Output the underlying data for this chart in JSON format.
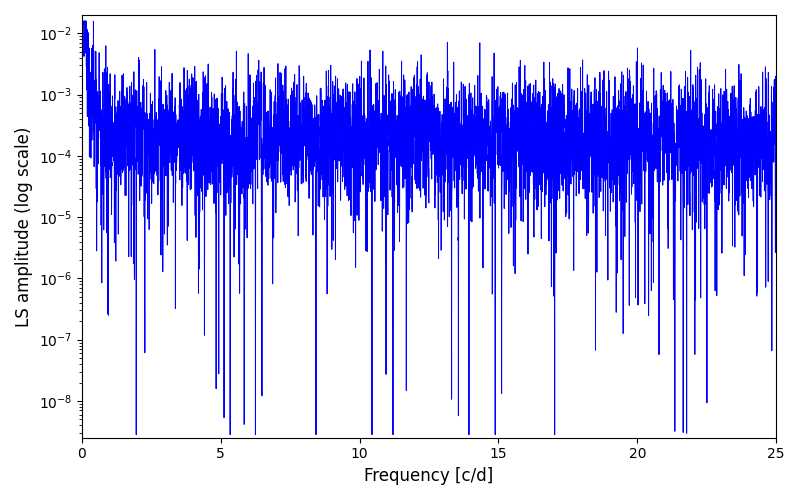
{
  "xlabel": "Frequency [c/d]",
  "ylabel": "LS amplitude (log scale)",
  "xlim": [
    0,
    25
  ],
  "ylim_log": [
    -8.6,
    -1.7
  ],
  "line_color": "#0000FF",
  "line_width": 0.7,
  "figsize": [
    8.0,
    5.0
  ],
  "dpi": 100,
  "n_points": 5000,
  "freq_max": 25.0,
  "seed": 12345,
  "background_color": "#ffffff",
  "label_fontsize": 12,
  "tick_fontsize": 10,
  "base_log": -3.7,
  "noise_sigma_smooth": 0.6,
  "noise_sigma_fine": 0.5,
  "spike_strength": 2.8,
  "spike_decay": 4.0,
  "spike_max_freq": 2.0,
  "n_deep_dips": 25,
  "dip_depth_min": 3.5,
  "dip_depth_max": 5.5
}
